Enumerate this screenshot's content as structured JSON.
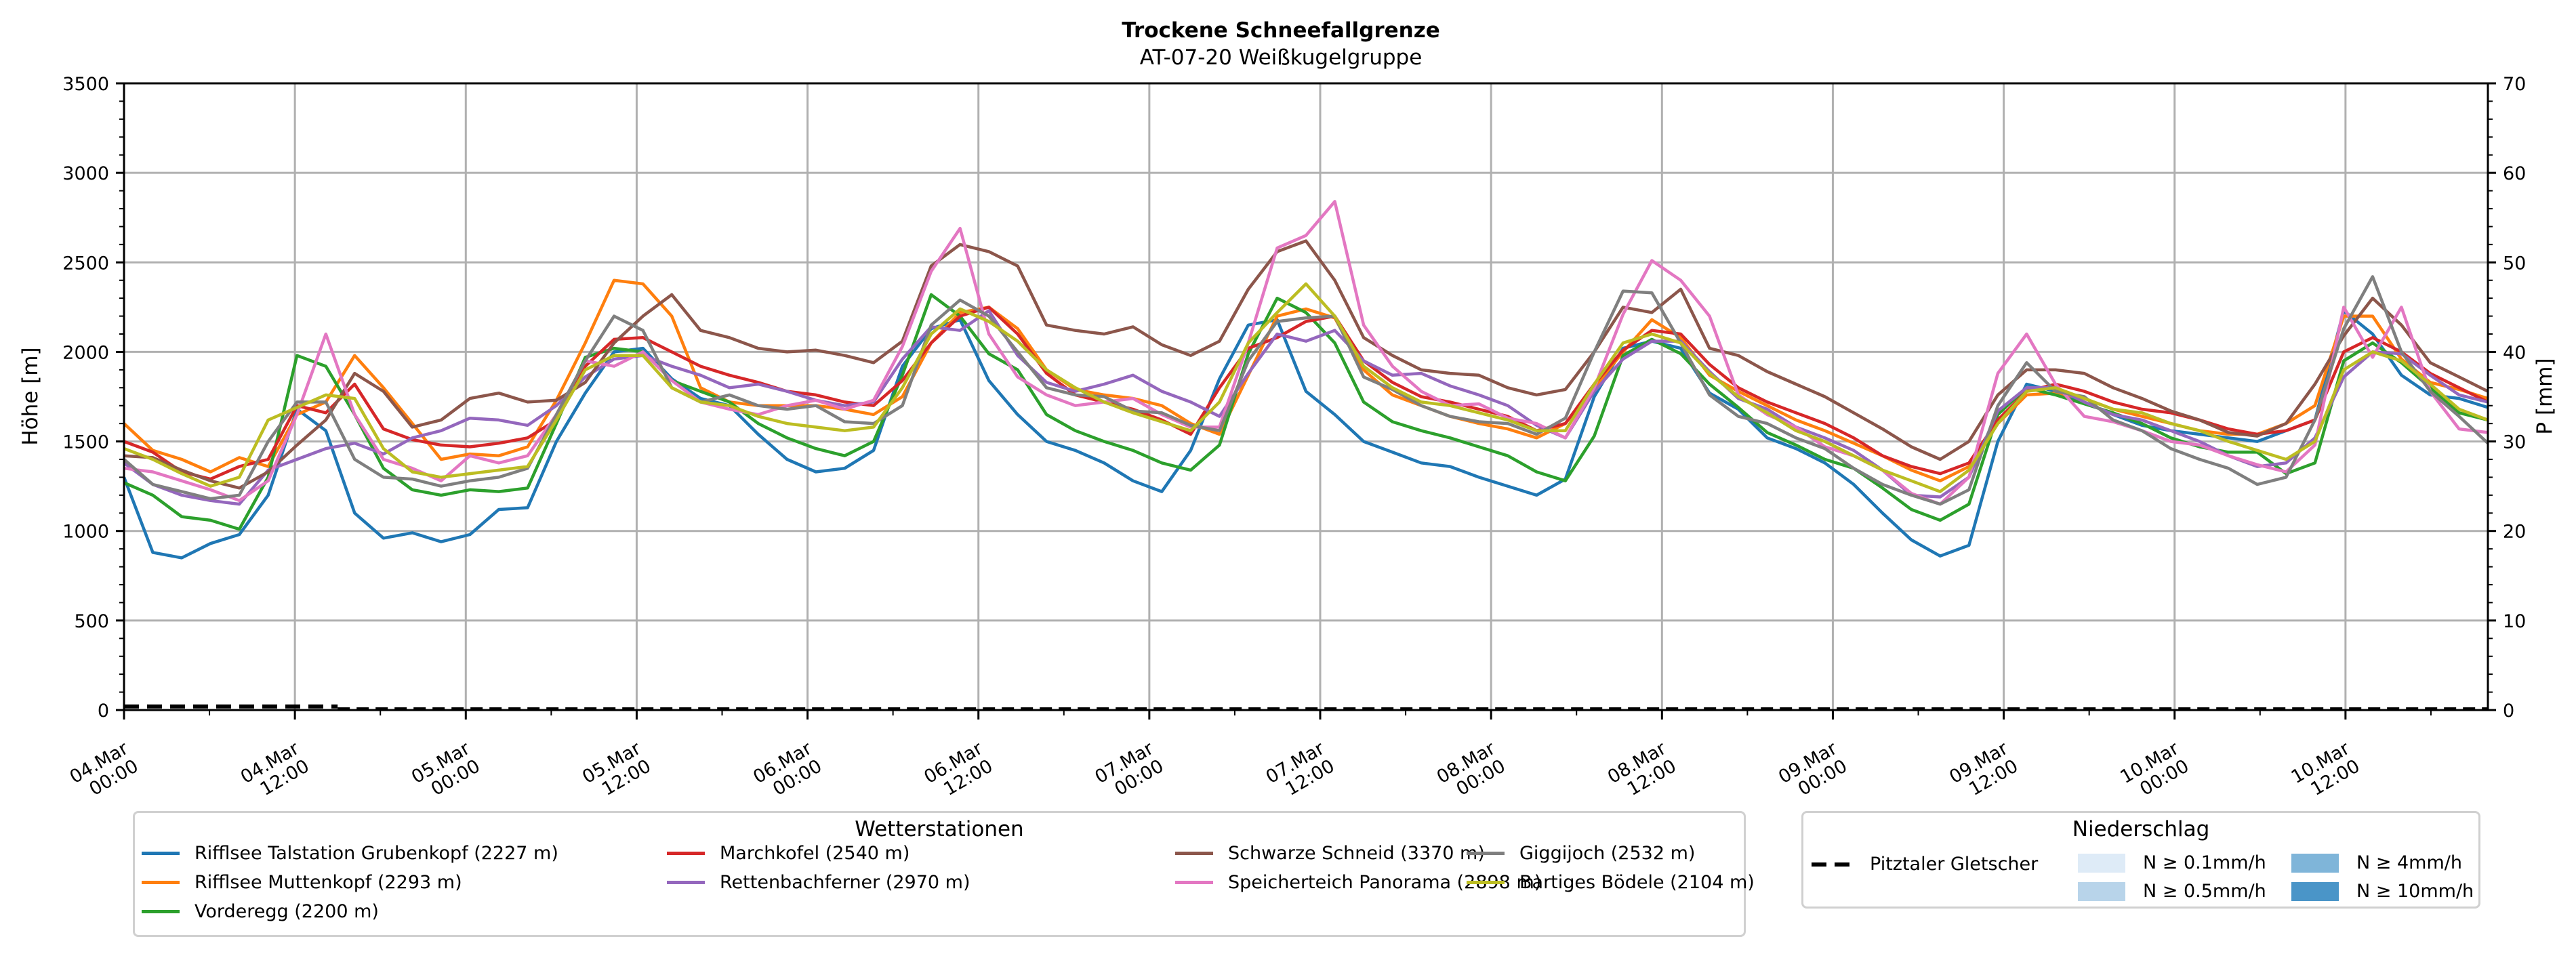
{
  "chart_data": {
    "type": "line",
    "title": "Trockene Schneefallgrenze",
    "subtitle": "AT-07-20 Weißkugelgruppe",
    "ylabel": "Höhe [m]",
    "y2label": "P [mm]",
    "ylim": [
      0,
      3500
    ],
    "y2lim": [
      0,
      70
    ],
    "yticks": [
      "0",
      "500",
      "1000",
      "1500",
      "2000",
      "2500",
      "3000",
      "3500"
    ],
    "y2ticks": [
      "0",
      "10",
      "20",
      "30",
      "40",
      "50",
      "60",
      "70"
    ],
    "grid": true,
    "x_unit": "hours since 04.Mar 00:00",
    "x_step_hours": 3,
    "xlim_hours": [
      0,
      166
    ],
    "xticks": [
      {
        "h": 0,
        "line1": "04.Mar",
        "line2": "00:00"
      },
      {
        "h": 12,
        "line1": "04.Mar",
        "line2": "12:00"
      },
      {
        "h": 24,
        "line1": "05.Mar",
        "line2": "00:00"
      },
      {
        "h": 36,
        "line1": "05.Mar",
        "line2": "12:00"
      },
      {
        "h": 48,
        "line1": "06.Mar",
        "line2": "00:00"
      },
      {
        "h": 60,
        "line1": "06.Mar",
        "line2": "12:00"
      },
      {
        "h": 72,
        "line1": "07.Mar",
        "line2": "00:00"
      },
      {
        "h": 84,
        "line1": "07.Mar",
        "line2": "12:00"
      },
      {
        "h": 96,
        "line1": "08.Mar",
        "line2": "00:00"
      },
      {
        "h": 108,
        "line1": "08.Mar",
        "line2": "12:00"
      },
      {
        "h": 120,
        "line1": "09.Mar",
        "line2": "00:00"
      },
      {
        "h": 132,
        "line1": "09.Mar",
        "line2": "12:00"
      },
      {
        "h": 144,
        "line1": "10.Mar",
        "line2": "00:00"
      },
      {
        "h": 156,
        "line1": "10.Mar",
        "line2": "12:00"
      }
    ],
    "series": [
      {
        "name": "Rifflsee Talstation Grubenkopf (2227 m)",
        "color": "#1f77b4",
        "values": [
          1300,
          880,
          850,
          930,
          980,
          1200,
          1680,
          1560,
          1100,
          960,
          990,
          940,
          980,
          1120,
          1130,
          1500,
          1770,
          2000,
          2020,
          1850,
          1740,
          1700,
          1540,
          1400,
          1330,
          1350,
          1450,
          1920,
          2130,
          2180,
          1840,
          1650,
          1500,
          1450,
          1380,
          1280,
          1220,
          1450,
          1850,
          2150,
          2180,
          1780,
          1650,
          1500,
          1440,
          1380,
          1360,
          1300,
          1250,
          1200,
          1290,
          1750,
          2020,
          2060,
          2020,
          1770,
          1680,
          1520,
          1460,
          1380,
          1260,
          1100,
          950,
          860,
          920,
          1500,
          1820,
          1780,
          1720,
          1650,
          1590,
          1560,
          1540,
          1520,
          1500,
          1560,
          1620,
          2230,
          2100,
          1870,
          1760,
          1740,
          1690
        ]
      },
      {
        "name": "Rifflsee Muttenkopf (2293 m)",
        "color": "#ff7f0e",
        "values": [
          1600,
          1450,
          1400,
          1330,
          1410,
          1360,
          1650,
          1720,
          1980,
          1800,
          1600,
          1400,
          1430,
          1420,
          1470,
          1730,
          2050,
          2400,
          2380,
          2200,
          1800,
          1720,
          1700,
          1700,
          1700,
          1680,
          1650,
          1750,
          2050,
          2220,
          2250,
          2130,
          1900,
          1790,
          1760,
          1740,
          1700,
          1600,
          1540,
          1870,
          2200,
          2240,
          2190,
          1900,
          1760,
          1700,
          1640,
          1600,
          1570,
          1520,
          1600,
          1800,
          2000,
          2180,
          2080,
          1870,
          1780,
          1700,
          1620,
          1560,
          1490,
          1420,
          1340,
          1280,
          1360,
          1600,
          1760,
          1770,
          1740,
          1680,
          1640,
          1600,
          1560,
          1540,
          1540,
          1600,
          1700,
          2200,
          2200,
          1960,
          1830,
          1790,
          1740
        ]
      },
      {
        "name": "Vorderegg (2200 m)",
        "color": "#2ca02c",
        "values": [
          1270,
          1200,
          1080,
          1060,
          1010,
          1300,
          1980,
          1920,
          1650,
          1350,
          1230,
          1200,
          1230,
          1220,
          1240,
          1600,
          1970,
          2020,
          2000,
          1840,
          1780,
          1720,
          1600,
          1520,
          1460,
          1420,
          1500,
          1870,
          2320,
          2200,
          1990,
          1900,
          1650,
          1560,
          1500,
          1450,
          1380,
          1340,
          1480,
          1990,
          2300,
          2220,
          2050,
          1720,
          1610,
          1560,
          1520,
          1470,
          1420,
          1330,
          1280,
          1530,
          1980,
          2070,
          1990,
          1820,
          1690,
          1550,
          1480,
          1400,
          1350,
          1240,
          1120,
          1060,
          1150,
          1650,
          1800,
          1760,
          1710,
          1660,
          1600,
          1520,
          1470,
          1440,
          1440,
          1320,
          1380,
          1950,
          2050,
          1940,
          1800,
          1660,
          1620
        ]
      },
      {
        "name": "Marchkofel (2540 m)",
        "color": "#d62728",
        "values": [
          1500,
          1440,
          1330,
          1290,
          1360,
          1400,
          1700,
          1660,
          1820,
          1570,
          1510,
          1480,
          1470,
          1490,
          1520,
          1620,
          1920,
          2070,
          2080,
          2000,
          1920,
          1870,
          1830,
          1780,
          1760,
          1720,
          1700,
          1840,
          2050,
          2200,
          2250,
          2100,
          1880,
          1760,
          1720,
          1680,
          1620,
          1540,
          1800,
          2020,
          2080,
          2170,
          2200,
          1950,
          1830,
          1750,
          1720,
          1680,
          1640,
          1560,
          1600,
          1820,
          2010,
          2120,
          2100,
          1930,
          1800,
          1720,
          1660,
          1600,
          1520,
          1420,
          1360,
          1320,
          1380,
          1620,
          1780,
          1820,
          1780,
          1720,
          1680,
          1660,
          1620,
          1570,
          1540,
          1560,
          1620,
          2000,
          2080,
          2000,
          1880,
          1800,
          1720
        ]
      },
      {
        "name": "Rettenbachferner (2970 m)",
        "color": "#9467bd",
        "values": [
          1380,
          1260,
          1200,
          1170,
          1150,
          1340,
          1400,
          1460,
          1490,
          1430,
          1520,
          1560,
          1630,
          1620,
          1590,
          1700,
          1860,
          1960,
          1980,
          1920,
          1870,
          1800,
          1820,
          1780,
          1730,
          1700,
          1720,
          1960,
          2140,
          2120,
          2230,
          1980,
          1830,
          1780,
          1820,
          1870,
          1780,
          1720,
          1640,
          1880,
          2100,
          2060,
          2120,
          1950,
          1870,
          1880,
          1810,
          1760,
          1700,
          1590,
          1520,
          1780,
          1960,
          2060,
          2060,
          1890,
          1740,
          1680,
          1580,
          1520,
          1450,
          1340,
          1200,
          1190,
          1300,
          1670,
          1800,
          1800,
          1720,
          1650,
          1620,
          1560,
          1500,
          1420,
          1360,
          1380,
          1520,
          1860,
          2000,
          1990,
          1870,
          1760,
          1720
        ]
      },
      {
        "name": "Schwarze Schneid (3370 m)",
        "color": "#8c564b",
        "values": [
          1420,
          1410,
          1340,
          1280,
          1240,
          1330,
          1480,
          1620,
          1880,
          1780,
          1580,
          1620,
          1740,
          1770,
          1720,
          1730,
          1830,
          2050,
          2200,
          2320,
          2120,
          2080,
          2020,
          2000,
          2010,
          1980,
          1940,
          2060,
          2480,
          2600,
          2560,
          2480,
          2150,
          2120,
          2100,
          2140,
          2040,
          1980,
          2060,
          2350,
          2560,
          2620,
          2400,
          2080,
          1980,
          1900,
          1880,
          1870,
          1800,
          1760,
          1790,
          2000,
          2250,
          2220,
          2350,
          2020,
          1980,
          1890,
          1820,
          1750,
          1660,
          1570,
          1470,
          1400,
          1500,
          1760,
          1900,
          1900,
          1880,
          1800,
          1740,
          1670,
          1620,
          1550,
          1530,
          1600,
          1820,
          2090,
          2300,
          2150,
          1940,
          1860,
          1780
        ]
      },
      {
        "name": "Speicherteich Panorama (2898 m)",
        "color": "#e377c2",
        "values": [
          1350,
          1330,
          1280,
          1230,
          1170,
          1280,
          1650,
          2100,
          1650,
          1400,
          1350,
          1280,
          1420,
          1380,
          1420,
          1650,
          1950,
          1920,
          2000,
          1840,
          1720,
          1680,
          1650,
          1700,
          1730,
          1680,
          1730,
          2030,
          2450,
          2690,
          2100,
          1860,
          1760,
          1700,
          1720,
          1740,
          1650,
          1580,
          1580,
          2050,
          2580,
          2650,
          2840,
          2150,
          1920,
          1780,
          1700,
          1710,
          1630,
          1600,
          1520,
          1800,
          2210,
          2510,
          2400,
          2200,
          1760,
          1650,
          1580,
          1470,
          1420,
          1340,
          1210,
          1150,
          1300,
          1880,
          2100,
          1820,
          1640,
          1610,
          1560,
          1500,
          1480,
          1420,
          1370,
          1330,
          1480,
          2250,
          1970,
          2250,
          1780,
          1570,
          1550
        ]
      },
      {
        "name": "Giggijoch (2532 m)",
        "color": "#7f7f7f",
        "values": [
          1400,
          1260,
          1220,
          1180,
          1200,
          1500,
          1720,
          1720,
          1400,
          1300,
          1290,
          1250,
          1280,
          1300,
          1350,
          1650,
          1950,
          2200,
          2120,
          1800,
          1720,
          1760,
          1700,
          1680,
          1700,
          1610,
          1600,
          1700,
          2150,
          2290,
          2200,
          2000,
          1800,
          1760,
          1750,
          1670,
          1660,
          1590,
          1560,
          1950,
          2170,
          2190,
          2200,
          1860,
          1790,
          1700,
          1640,
          1610,
          1600,
          1540,
          1630,
          2000,
          2340,
          2330,
          2050,
          1760,
          1640,
          1600,
          1520,
          1460,
          1350,
          1260,
          1200,
          1150,
          1230,
          1700,
          1940,
          1780,
          1750,
          1620,
          1560,
          1460,
          1400,
          1350,
          1260,
          1300,
          1620,
          2130,
          2420,
          2000,
          1780,
          1640,
          1490
        ]
      },
      {
        "name": "Bartiges Bödele (2104 m)",
        "color": "#bcbd22",
        "values": [
          1460,
          1400,
          1320,
          1250,
          1300,
          1620,
          1690,
          1760,
          1740,
          1460,
          1330,
          1300,
          1320,
          1340,
          1360,
          1620,
          1900,
          1980,
          1980,
          1800,
          1720,
          1700,
          1640,
          1600,
          1580,
          1560,
          1580,
          1800,
          2100,
          2240,
          2170,
          2060,
          1900,
          1800,
          1720,
          1660,
          1610,
          1560,
          1720,
          2050,
          2220,
          2380,
          2200,
          1920,
          1800,
          1720,
          1700,
          1660,
          1620,
          1560,
          1560,
          1820,
          2050,
          2100,
          2050,
          1880,
          1750,
          1660,
          1560,
          1500,
          1420,
          1340,
          1280,
          1220,
          1340,
          1600,
          1780,
          1800,
          1740,
          1680,
          1660,
          1600,
          1560,
          1500,
          1450,
          1400,
          1500,
          1900,
          2000,
          1950,
          1820,
          1680,
          1620
        ]
      }
    ],
    "precip_series": {
      "name": "Pitztaler Gletscher",
      "style": "dashed",
      "values_mm_first": [
        0.4,
        0.4,
        0.4,
        0.4,
        0.4,
        0.4
      ],
      "values_mm_rest": 0
    }
  },
  "legend_stations": {
    "title": "Wetterstationen",
    "items": [
      {
        "label": "Rifflsee Talstation Grubenkopf (2227 m)",
        "color": "#1f77b4"
      },
      {
        "label": "Rifflsee Muttenkopf (2293 m)",
        "color": "#ff7f0e"
      },
      {
        "label": "Vorderegg (2200 m)",
        "color": "#2ca02c"
      },
      {
        "label": "Marchkofel (2540 m)",
        "color": "#d62728"
      },
      {
        "label": "Rettenbachferner (2970 m)",
        "color": "#9467bd"
      },
      {
        "label": "Schwarze Schneid (3370 m)",
        "color": "#8c564b"
      },
      {
        "label": "Speicherteich Panorama (2898 m)",
        "color": "#e377c2"
      },
      {
        "label": "Giggijoch (2532 m)",
        "color": "#7f7f7f"
      },
      {
        "label": "Bartiges Bödele (2104 m)",
        "color": "#bcbd22"
      }
    ]
  },
  "legend_precip": {
    "title": "Niederschlag",
    "line_label": "Pitztaler Gletscher",
    "patches": [
      {
        "label": "N ≥ 0.1mm/h",
        "color": "#deebf7"
      },
      {
        "label": "N ≥ 0.5mm/h",
        "color": "#b8d4ea"
      },
      {
        "label": "N ≥ 4mm/h",
        "color": "#7fb5d9"
      },
      {
        "label": "N ≥ 10mm/h",
        "color": "#4a95c8"
      }
    ]
  }
}
